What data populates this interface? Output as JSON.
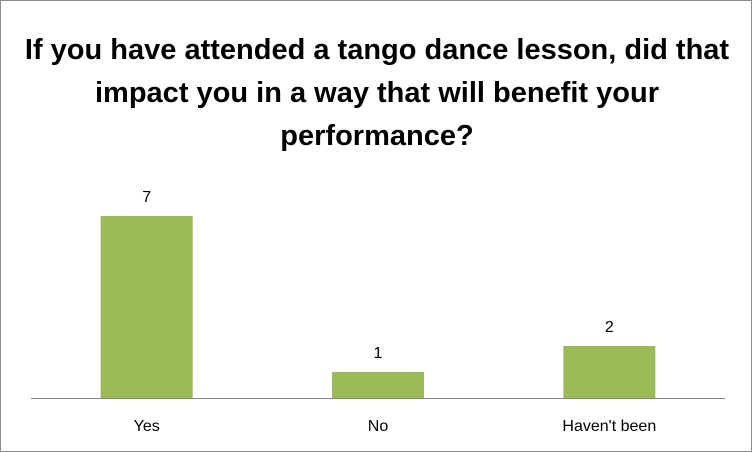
{
  "chart_data": {
    "type": "bar",
    "title": "If you have attended a tango dance lesson, did that impact you in a way that will benefit your performance?",
    "categories": [
      "Yes",
      "No",
      "Haven't been"
    ],
    "values": [
      7,
      1,
      2
    ],
    "xlabel": "",
    "ylabel": "",
    "ylim": [
      0,
      7
    ],
    "grid": false,
    "legend": "none",
    "bar_color": "#9bbb59",
    "axis_color": "#868686"
  }
}
